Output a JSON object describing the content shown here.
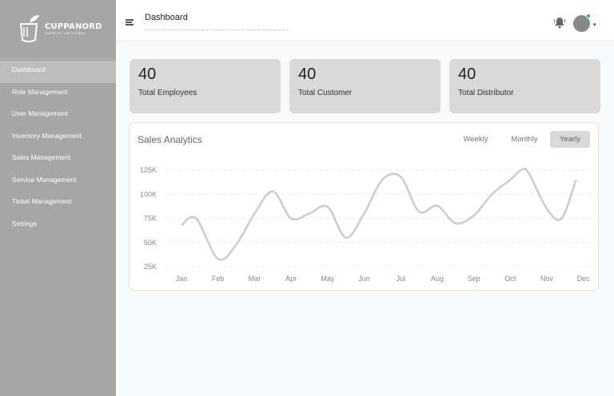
{
  "brand": {
    "name": "CUPPANORD",
    "tagline": "TASTE OF THE FJORDS"
  },
  "sidebar": {
    "items": [
      {
        "label": "Dashboard",
        "active": true
      },
      {
        "label": "Role Management"
      },
      {
        "label": "User Management"
      },
      {
        "label": "Inventory Management"
      },
      {
        "label": "Sales Management"
      },
      {
        "label": "Service Management"
      },
      {
        "label": "Ticket Management"
      },
      {
        "label": "Settings"
      }
    ]
  },
  "header": {
    "title": "Dashboard",
    "notification_icon": "bell-icon",
    "status_color": "#22c55e"
  },
  "stats": [
    {
      "value": "40",
      "label": "Total Employees"
    },
    {
      "value": "40",
      "label": "Total Customer"
    },
    {
      "value": "40",
      "label": "Total Distributor"
    }
  ],
  "analytics": {
    "title": "Sales Analytics",
    "tabs": [
      {
        "label": "Weekly"
      },
      {
        "label": "Monthly"
      },
      {
        "label": "Yearly",
        "active": true
      }
    ]
  },
  "chart_data": {
    "type": "line",
    "categories": [
      "Jan",
      "Feb",
      "Mar",
      "Apr",
      "May",
      "Jun",
      "Jul",
      "Aug",
      "Sep",
      "Oct",
      "Nov",
      "Dec"
    ],
    "x": [
      0,
      0.4,
      1,
      1.5,
      2,
      2.5,
      3,
      3.5,
      4,
      4.5,
      5,
      5.5,
      6,
      6.5,
      7,
      7.5,
      8,
      8.5,
      9,
      9.3,
      9.5,
      10,
      10.4,
      10.8
    ],
    "values": [
      68,
      75,
      33,
      48,
      80,
      103,
      75,
      80,
      87,
      55,
      80,
      115,
      118,
      82,
      88,
      70,
      78,
      100,
      115,
      125,
      122,
      85,
      75,
      115
    ],
    "yticks": [
      "125K",
      "100K",
      "75K",
      "50K",
      "25K"
    ],
    "ylim": [
      25,
      125
    ],
    "grid": true,
    "line_color": "#cccccc"
  }
}
